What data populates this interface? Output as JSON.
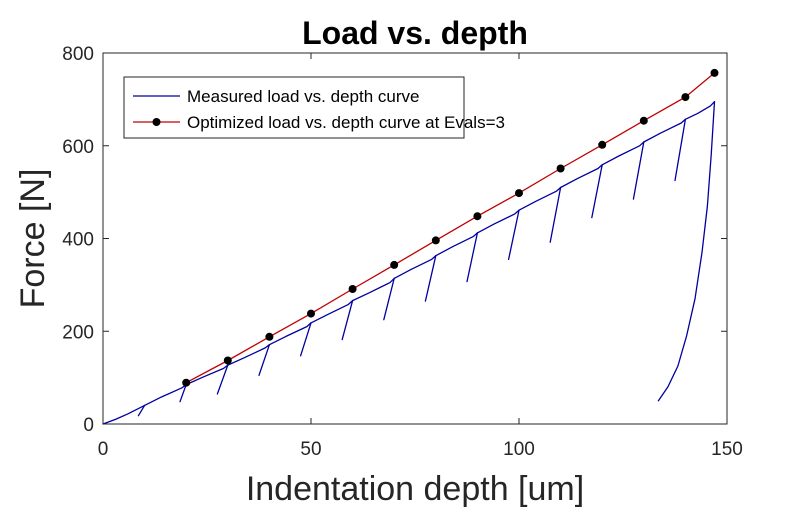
{
  "chart_data": {
    "type": "line",
    "title": "Load vs. depth",
    "xlabel": "Indentation depth [um]",
    "ylabel": "Force [N]",
    "xlim": [
      0,
      150
    ],
    "ylim": [
      0,
      800
    ],
    "xticks": [
      0,
      50,
      100,
      150
    ],
    "yticks": [
      0,
      200,
      400,
      600,
      800
    ],
    "grid": false,
    "legend_position": "top-left",
    "series": [
      {
        "name": "Measured load vs. depth curve",
        "color": "#0000a0",
        "style": "line",
        "segments": [
          [
            [
              0,
              0
            ],
            [
              3,
              10
            ],
            [
              6,
              22
            ],
            [
              10,
              40
            ]
          ],
          [
            [
              8.5,
              18
            ],
            [
              10,
              40
            ]
          ],
          [
            [
              10,
              40
            ],
            [
              14,
              58
            ],
            [
              19,
              78
            ],
            [
              20,
              85
            ]
          ],
          [
            [
              18.5,
              48
            ],
            [
              20,
              85
            ]
          ],
          [
            [
              20,
              85
            ],
            [
              24,
              101
            ],
            [
              29,
              120
            ],
            [
              30,
              127
            ]
          ],
          [
            [
              27.5,
              65
            ],
            [
              30,
              127
            ]
          ],
          [
            [
              30,
              127
            ],
            [
              34,
              143
            ],
            [
              39,
              164
            ],
            [
              40,
              171
            ]
          ],
          [
            [
              37.5,
              105
            ],
            [
              40,
              171
            ]
          ],
          [
            [
              40,
              171
            ],
            [
              44,
              189
            ],
            [
              49,
              210
            ],
            [
              50,
              218
            ]
          ],
          [
            [
              47.5,
              147
            ],
            [
              50,
              218
            ]
          ],
          [
            [
              50,
              218
            ],
            [
              54,
              236
            ],
            [
              59,
              258
            ],
            [
              60,
              266
            ]
          ],
          [
            [
              57.5,
              182
            ],
            [
              60,
              266
            ]
          ],
          [
            [
              60,
              266
            ],
            [
              64,
              283
            ],
            [
              69,
              305
            ],
            [
              70,
              314
            ]
          ],
          [
            [
              67.5,
              225
            ],
            [
              70,
              314
            ]
          ],
          [
            [
              70,
              314
            ],
            [
              74,
              333
            ],
            [
              79,
              355
            ],
            [
              80,
              363
            ]
          ],
          [
            [
              77.5,
              265
            ],
            [
              80,
              363
            ]
          ],
          [
            [
              80,
              363
            ],
            [
              84,
              382
            ],
            [
              89,
              404
            ],
            [
              90,
              412
            ]
          ],
          [
            [
              87.5,
              307
            ],
            [
              90,
              412
            ]
          ],
          [
            [
              90,
              412
            ],
            [
              94,
              431
            ],
            [
              99,
              453
            ],
            [
              100,
              461
            ]
          ],
          [
            [
              97.5,
              355
            ],
            [
              100,
              461
            ]
          ],
          [
            [
              100,
              461
            ],
            [
              104,
              480
            ],
            [
              109,
              502
            ],
            [
              110,
              510
            ]
          ],
          [
            [
              107.5,
              392
            ],
            [
              110,
              510
            ]
          ],
          [
            [
              110,
              510
            ],
            [
              114,
              529
            ],
            [
              119,
              551
            ],
            [
              120,
              559
            ]
          ],
          [
            [
              117.5,
              445
            ],
            [
              120,
              559
            ]
          ],
          [
            [
              120,
              559
            ],
            [
              124,
              578
            ],
            [
              129,
              600
            ],
            [
              130,
              608
            ]
          ],
          [
            [
              127.5,
              485
            ],
            [
              130,
              608
            ]
          ],
          [
            [
              130,
              608
            ],
            [
              134,
              627
            ],
            [
              139,
              649
            ],
            [
              140,
              657
            ]
          ],
          [
            [
              137.5,
              525
            ],
            [
              140,
              657
            ]
          ],
          [
            [
              140,
              657
            ],
            [
              143,
              670
            ],
            [
              146,
              686
            ],
            [
              147,
              695
            ]
          ],
          [
            [
              147,
              695
            ],
            [
              146.2,
              580
            ],
            [
              145.3,
              470
            ],
            [
              144,
              370
            ],
            [
              142.3,
              270
            ],
            [
              140.3,
              190
            ],
            [
              138.2,
              125
            ],
            [
              135.8,
              80
            ],
            [
              133.5,
              50
            ]
          ]
        ]
      },
      {
        "name": "Optimized load vs. depth curve at Evals=3",
        "color": "#c00000",
        "marker_color": "#000000",
        "style": "line-with-markers",
        "x": [
          20,
          30,
          40,
          50,
          60,
          70,
          80,
          90,
          100,
          110,
          120,
          130,
          140,
          147
        ],
        "y": [
          89,
          137,
          188,
          238,
          291,
          343,
          396,
          448,
          498,
          551,
          602,
          654,
          705,
          757
        ]
      }
    ]
  }
}
